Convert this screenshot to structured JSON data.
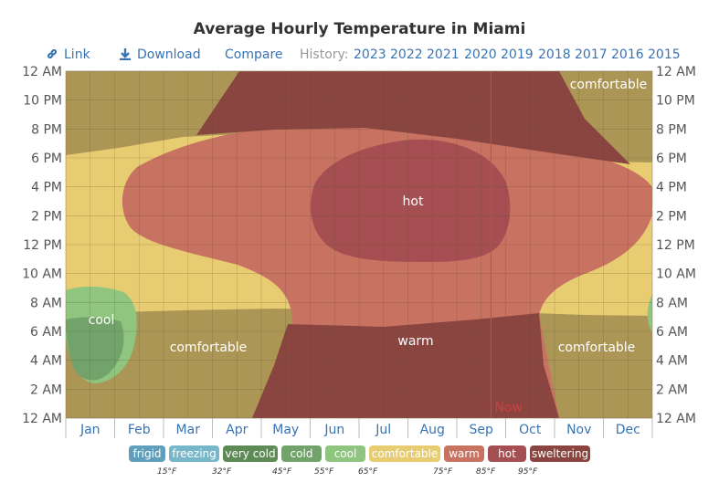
{
  "title": "Average Hourly Temperature in Miami",
  "toolbar": {
    "link_label": "Link",
    "download_label": "Download",
    "compare_label": "Compare",
    "history_label": "History:",
    "years": [
      "2023",
      "2022",
      "2021",
      "2020",
      "2019",
      "2018",
      "2017",
      "2016",
      "2015"
    ]
  },
  "colors": {
    "frigid": "#5f9fbb",
    "freezing": "#78b6ca",
    "very_cold": "#5d8a55",
    "cold": "#72a36a",
    "cool": "#8fc57e",
    "comfortable": "#e8cc72",
    "comfortable_night": "#ac9656",
    "warm": "#c87262",
    "hot": "#a64f52",
    "sweltering": "#8b4540",
    "now_line": "#e04040",
    "month_link": "#3873b3"
  },
  "chart_data": {
    "type": "heatmap",
    "title": "Average Hourly Temperature in Miami",
    "x_axis": {
      "labels": [
        "Jan",
        "Feb",
        "Mar",
        "Apr",
        "May",
        "Jun",
        "Jul",
        "Aug",
        "Sep",
        "Oct",
        "Nov",
        "Dec"
      ]
    },
    "y_axis": {
      "labels": [
        "12 AM",
        "10 PM",
        "8 PM",
        "6 PM",
        "4 PM",
        "2 PM",
        "12 PM",
        "10 AM",
        "8 AM",
        "6 AM",
        "4 AM",
        "2 AM",
        "12 AM"
      ],
      "range_hours": [
        0,
        24
      ]
    },
    "now_marker": {
      "label": "Now",
      "month": 8.7
    },
    "grid": true,
    "legend_position": "bottom",
    "categories": [
      {
        "name": "frigid",
        "color": "#5f9fbb"
      },
      {
        "name": "freezing",
        "color": "#78b6ca"
      },
      {
        "name": "very cold",
        "color": "#5d8a55"
      },
      {
        "name": "cold",
        "color": "#72a36a"
      },
      {
        "name": "cool",
        "color": "#8fc57e"
      },
      {
        "name": "comfortable",
        "color": "#e8cc72"
      },
      {
        "name": "warm",
        "color": "#c87262"
      },
      {
        "name": "hot",
        "color": "#a64f52"
      },
      {
        "name": "sweltering",
        "color": "#8b4540"
      }
    ],
    "thresholds": [
      "15°F",
      "32°F",
      "45°F",
      "55°F",
      "65°F",
      "75°F",
      "85°F",
      "95°F"
    ],
    "region_labels": [
      "hot",
      "warm",
      "cool",
      "comfortable",
      "comfortable",
      "comfortable"
    ]
  }
}
